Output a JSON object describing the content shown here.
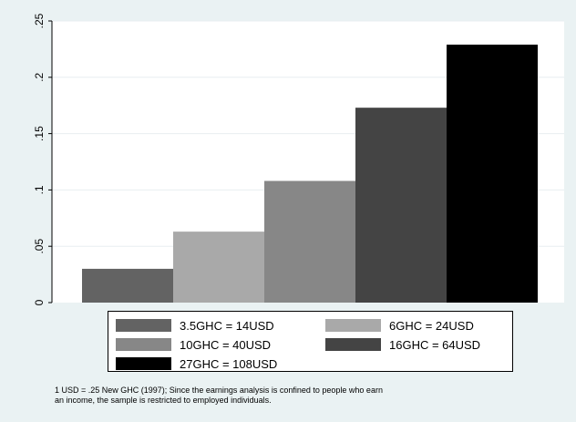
{
  "chart_data": {
    "type": "bar",
    "categories": [
      "3.5GHC = 14USD",
      "6GHC = 24USD",
      "10GHC = 40USD",
      "16GHC = 64USD",
      "27GHC = 108USD"
    ],
    "values": [
      0.03,
      0.063,
      0.108,
      0.173,
      0.229
    ],
    "colors": [
      "#636363",
      "#a9a9a9",
      "#878787",
      "#444444",
      "#000000"
    ],
    "ylim": [
      0,
      0.25
    ],
    "yticks": [
      0,
      0.05,
      0.1,
      0.15,
      0.2,
      0.25
    ],
    "ytick_labels": [
      "0",
      ".05",
      ".1",
      ".15",
      ".2",
      ".25"
    ],
    "grid": true,
    "legend_placement": "bottom"
  },
  "note": {
    "line1": "1 USD = .25 New GHC (1997); Since the earnings analysis is confined to people who earn",
    "line2": "an income, the sample is restricted to employed individuals."
  }
}
